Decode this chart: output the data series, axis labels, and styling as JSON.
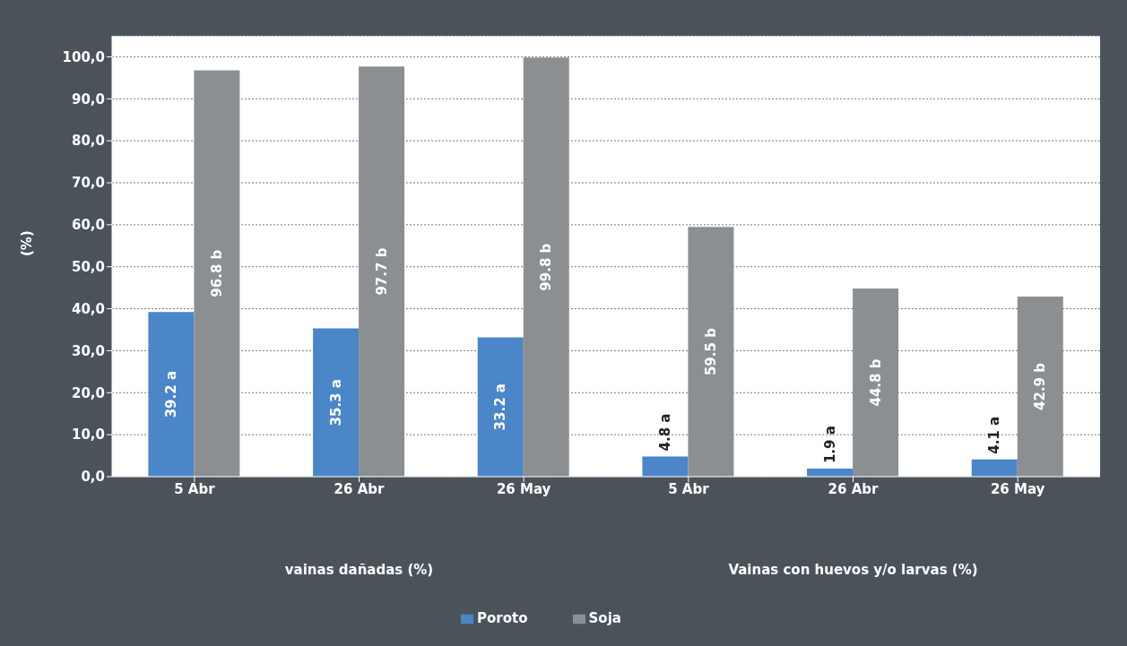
{
  "chart_data": {
    "type": "bar",
    "ylabel": "(%)",
    "categories": [
      "5 Abr",
      "26 Abr",
      "26 May",
      "5 Abr",
      "26 Abr",
      "26 May"
    ],
    "series": [
      {
        "name": "Poroto",
        "color": "#4a86c8",
        "values": [
          39.2,
          35.3,
          33.2,
          4.8,
          1.9,
          4.1
        ],
        "value_labels": [
          "39.2 a",
          "35.3 a",
          "33.2 a",
          "4.8 a",
          "1.9 a",
          "4.1 a"
        ]
      },
      {
        "name": "Soja",
        "color": "#8c8f92",
        "values": [
          96.8,
          97.7,
          99.8,
          59.5,
          44.8,
          42.9
        ],
        "value_labels": [
          "96.8 b",
          "97.7 b",
          "99.8 b",
          "59.5 b",
          "44.8 b",
          "42.9 b"
        ]
      }
    ],
    "annotations": [
      "vainas dañadas (%)",
      "Vainas con huevos y/o larvas (%)"
    ],
    "ylim": [
      0,
      105
    ],
    "yticks": [
      {
        "value": 0,
        "label": "0,0"
      },
      {
        "value": 10,
        "label": "10,0"
      },
      {
        "value": 20,
        "label": "20,0"
      },
      {
        "value": 30,
        "label": "30,0"
      },
      {
        "value": 40,
        "label": "40,0"
      },
      {
        "value": 50,
        "label": "50,0"
      },
      {
        "value": 60,
        "label": "60,0"
      },
      {
        "value": 70,
        "label": "70,0"
      },
      {
        "value": 80,
        "label": "80,0"
      },
      {
        "value": 90,
        "label": "90,0"
      },
      {
        "value": 100,
        "label": "100,0"
      }
    ],
    "grid": "y",
    "legend": "bottom"
  }
}
